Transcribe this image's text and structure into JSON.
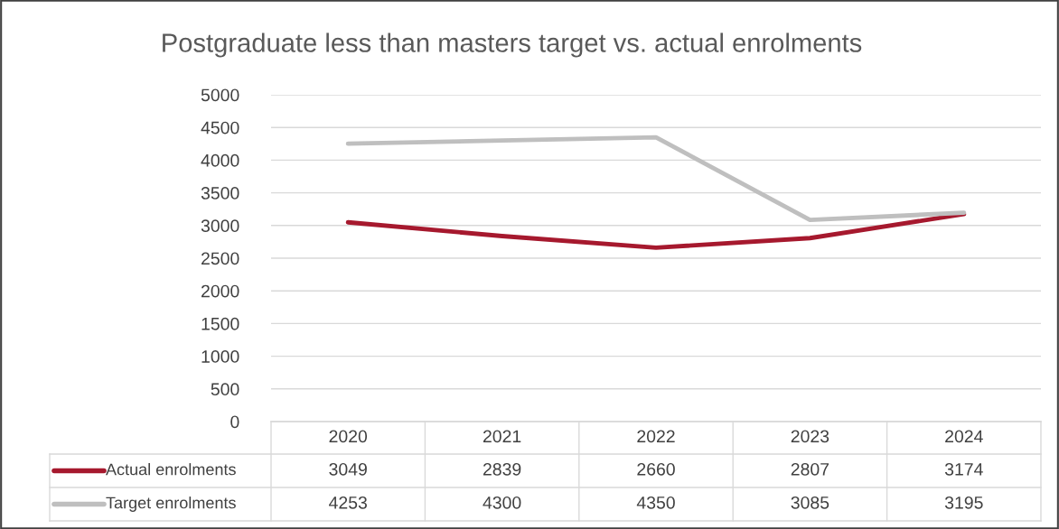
{
  "chart_data": {
    "type": "line",
    "title": "Postgraduate less than masters target vs. actual enrolments",
    "categories": [
      "2020",
      "2021",
      "2022",
      "2023",
      "2024"
    ],
    "series": [
      {
        "name": "Actual enrolments",
        "color": "#a6192e",
        "values": [
          3049,
          2839,
          2660,
          2807,
          3174
        ]
      },
      {
        "name": "Target enrolments",
        "color": "#bfbfbf",
        "values": [
          4253,
          4300,
          4350,
          3085,
          3195
        ]
      }
    ],
    "ylim": [
      0,
      5000
    ],
    "yticks": [
      0,
      500,
      1000,
      1500,
      2000,
      2500,
      3000,
      3500,
      4000,
      4500,
      5000
    ],
    "grid": "y",
    "legend": "bottom",
    "data_labels": true,
    "marker": "none",
    "line_style": "solid"
  }
}
